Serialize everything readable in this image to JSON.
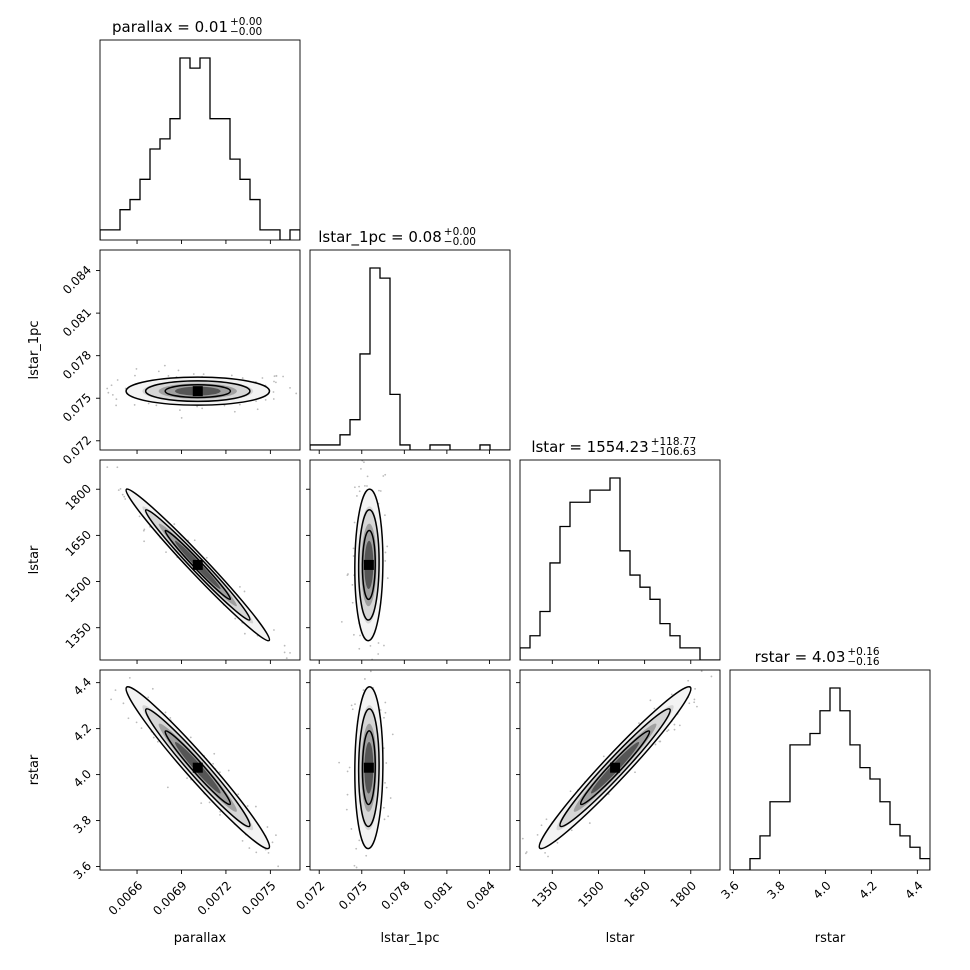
{
  "chart_data": {
    "type": "corner",
    "parameters": [
      "parallax",
      "lstar_1pc",
      "lstar",
      "rstar"
    ],
    "titles": [
      {
        "name": "parallax",
        "value": "0.01",
        "plus": "+0.00",
        "minus": "−0.00"
      },
      {
        "name": "lstar_1pc",
        "value": "0.08",
        "plus": "+0.00",
        "minus": "−0.00"
      },
      {
        "name": "lstar",
        "value": "1554.23",
        "plus": "+118.77",
        "minus": "−106.63"
      },
      {
        "name": "rstar",
        "value": "4.03",
        "plus": "+0.16",
        "minus": "−0.16"
      }
    ],
    "ranges": [
      [
        0.00635,
        0.0077
      ],
      [
        0.07135,
        0.08545
      ],
      [
        1245,
        1895
      ],
      [
        3.585,
        4.455
      ]
    ],
    "ticks": [
      {
        "values": [
          0.0066,
          0.0069,
          0.0072,
          0.0075
        ],
        "labels": [
          "0.0066",
          "0.0069",
          "0.0072",
          "0.0075"
        ]
      },
      {
        "values": [
          0.072,
          0.075,
          0.078,
          0.081,
          0.084
        ],
        "labels": [
          "0.072",
          "0.075",
          "0.078",
          "0.081",
          "0.084"
        ]
      },
      {
        "values": [
          1350,
          1500,
          1650,
          1800
        ],
        "labels": [
          "1350",
          "1500",
          "1650",
          "1800"
        ]
      },
      {
        "values": [
          3.6,
          3.8,
          4.0,
          4.2,
          4.4
        ],
        "labels": [
          "3.6",
          "3.8",
          "4.0",
          "4.2",
          "4.4"
        ]
      }
    ],
    "histograms": [
      {
        "param": "parallax",
        "counts": [
          1,
          1,
          3,
          4,
          6,
          9,
          10,
          12,
          18,
          17,
          18,
          12,
          12,
          8,
          6,
          4,
          1,
          1,
          0,
          1
        ]
      },
      {
        "param": "lstar_1pc",
        "counts": [
          1,
          1,
          1,
          3,
          6,
          19,
          36,
          34,
          11,
          1,
          0,
          0,
          1,
          1,
          0,
          0,
          0,
          1,
          0,
          0
        ]
      },
      {
        "param": "lstar",
        "counts": [
          1,
          2,
          4,
          8,
          11,
          13,
          13,
          14,
          14,
          15,
          9,
          7,
          6,
          5,
          3,
          2,
          1,
          1,
          0,
          0
        ]
      },
      {
        "param": "rstar",
        "counts": [
          0,
          0,
          1,
          3,
          6,
          6,
          11,
          11,
          12,
          14,
          16,
          14,
          11,
          9,
          8,
          6,
          4,
          3,
          2,
          1
        ]
      }
    ],
    "correlation_panels": [
      {
        "x": "parallax",
        "y": "lstar_1pc",
        "center": [
          0.00701,
          0.0755
        ],
        "sigma": [
          0.00022,
          0.00045
        ],
        "rho": 0.0
      },
      {
        "x": "parallax",
        "y": "lstar",
        "center": [
          0.00701,
          1554
        ],
        "sigma": [
          0.00022,
          112
        ],
        "rho": -0.985
      },
      {
        "x": "lstar_1pc",
        "y": "lstar",
        "center": [
          0.0755,
          1554
        ],
        "sigma": [
          0.00045,
          112
        ],
        "rho": 0.05
      },
      {
        "x": "parallax",
        "y": "rstar",
        "center": [
          0.00701,
          4.03
        ],
        "sigma": [
          0.00022,
          0.16
        ],
        "rho": -0.975
      },
      {
        "x": "lstar_1pc",
        "y": "rstar",
        "center": [
          0.0755,
          4.03
        ],
        "sigma": [
          0.00045,
          0.16
        ],
        "rho": 0.05
      },
      {
        "x": "lstar",
        "y": "rstar",
        "center": [
          1554,
          4.03
        ],
        "sigma": [
          112,
          0.16
        ],
        "rho": 0.975
      }
    ],
    "xlabels": [
      "parallax",
      "lstar_1pc",
      "lstar",
      "rstar"
    ],
    "ylabels": [
      "lstar_1pc",
      "lstar",
      "rstar"
    ]
  }
}
